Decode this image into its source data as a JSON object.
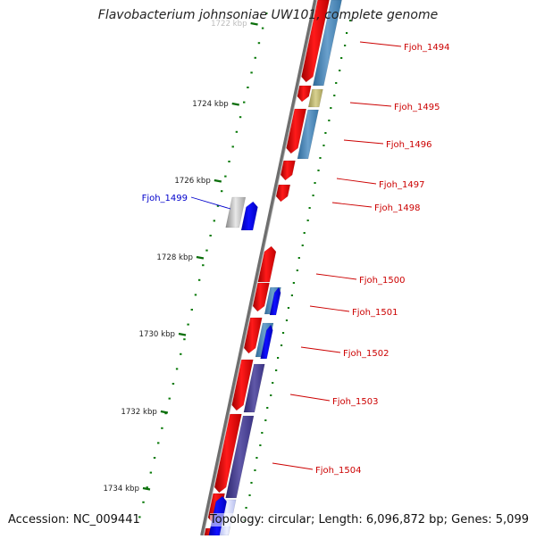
{
  "title": "Flavobacterium johnsoniae UW101, complete genome",
  "footer": {
    "accession": "Accession: NC_009441",
    "summary": "Topology: circular; Length: 6,096,872 bp; Genes: 5,099"
  },
  "ruler": {
    "ticks": [
      {
        "label": "1722 kbp",
        "kbp": 1722
      },
      {
        "label": "1724 kbp",
        "kbp": 1724
      },
      {
        "label": "1726 kbp",
        "kbp": 1726
      },
      {
        "label": "1728 kbp",
        "kbp": 1728
      },
      {
        "label": "1730 kbp",
        "kbp": 1730
      },
      {
        "label": "1732 kbp",
        "kbp": 1732
      },
      {
        "label": "1734 kbp",
        "kbp": 1734
      }
    ]
  },
  "genes": [
    {
      "label": "Fjoh_1494",
      "color": "#cc0000"
    },
    {
      "label": "Fjoh_1495",
      "color": "#cc0000"
    },
    {
      "label": "Fjoh_1496",
      "color": "#cc0000"
    },
    {
      "label": "Fjoh_1497",
      "color": "#cc0000"
    },
    {
      "label": "Fjoh_1498",
      "color": "#cc0000"
    },
    {
      "label": "Fjoh_1499",
      "color": "#0000cc"
    },
    {
      "label": "Fjoh_1500",
      "color": "#cc0000"
    },
    {
      "label": "Fjoh_1501",
      "color": "#cc0000"
    },
    {
      "label": "Fjoh_1502",
      "color": "#cc0000"
    },
    {
      "label": "Fjoh_1503",
      "color": "#cc0000"
    },
    {
      "label": "Fjoh_1504",
      "color": "#cc0000"
    }
  ],
  "colors": {
    "forward_cds": "#ff0000",
    "reverse_cds": "#0000ff",
    "blast_blue": "#4682b4",
    "blast_purple": "#483d8b",
    "blast_khaki": "#bdb76b",
    "backbone": "#808080",
    "tick_green": "#006400"
  }
}
